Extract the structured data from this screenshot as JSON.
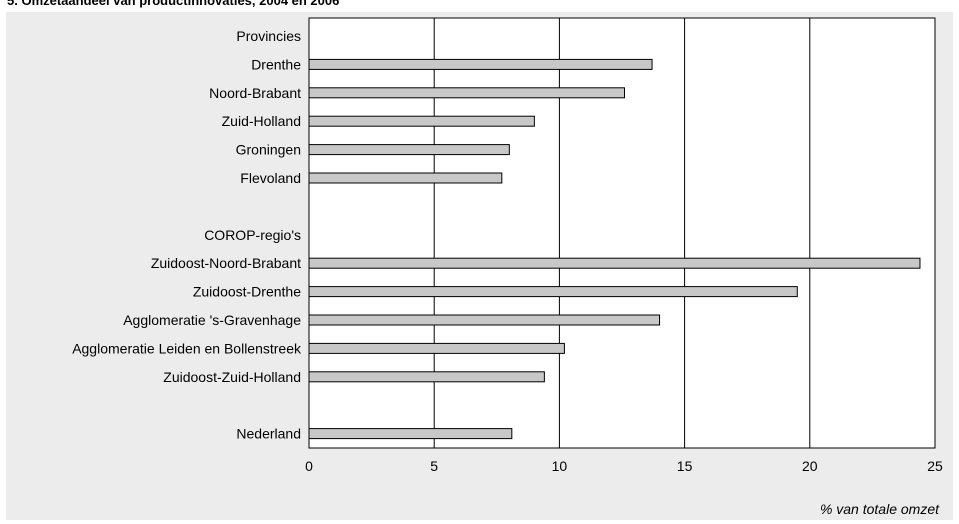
{
  "title": "5. Omzetaandeel van productinnovaties, 2004 en 2006",
  "chart_data": {
    "type": "bar",
    "orientation": "horizontal",
    "xlabel": "% van totale omzet",
    "xlim": [
      0,
      25
    ],
    "xticks": [
      0,
      5,
      10,
      15,
      20,
      25
    ],
    "grid": "vertical",
    "bar_color": "#c8c8c8",
    "background_color": "#ececec",
    "rows": [
      {
        "label": "Provincies",
        "value": null,
        "header": true
      },
      {
        "label": "Drenthe",
        "value": 13.7
      },
      {
        "label": "Noord-Brabant",
        "value": 12.6
      },
      {
        "label": "Zuid-Holland",
        "value": 9.0
      },
      {
        "label": "Groningen",
        "value": 8.0
      },
      {
        "label": "Flevoland",
        "value": 7.7
      },
      {
        "label": "",
        "value": null,
        "spacer": true
      },
      {
        "label": "COROP-regio's",
        "value": null,
        "header": true
      },
      {
        "label": "Zuidoost-Noord-Brabant",
        "value": 24.4
      },
      {
        "label": "Zuidoost-Drenthe",
        "value": 19.5
      },
      {
        "label": "Agglomeratie 's-Gravenhage",
        "value": 14.0
      },
      {
        "label": "Agglomeratie Leiden en Bollenstreek",
        "value": 10.2
      },
      {
        "label": "Zuidoost-Zuid-Holland",
        "value": 9.4
      },
      {
        "label": "",
        "value": null,
        "spacer": true
      },
      {
        "label": "Nederland",
        "value": 8.1
      }
    ]
  }
}
